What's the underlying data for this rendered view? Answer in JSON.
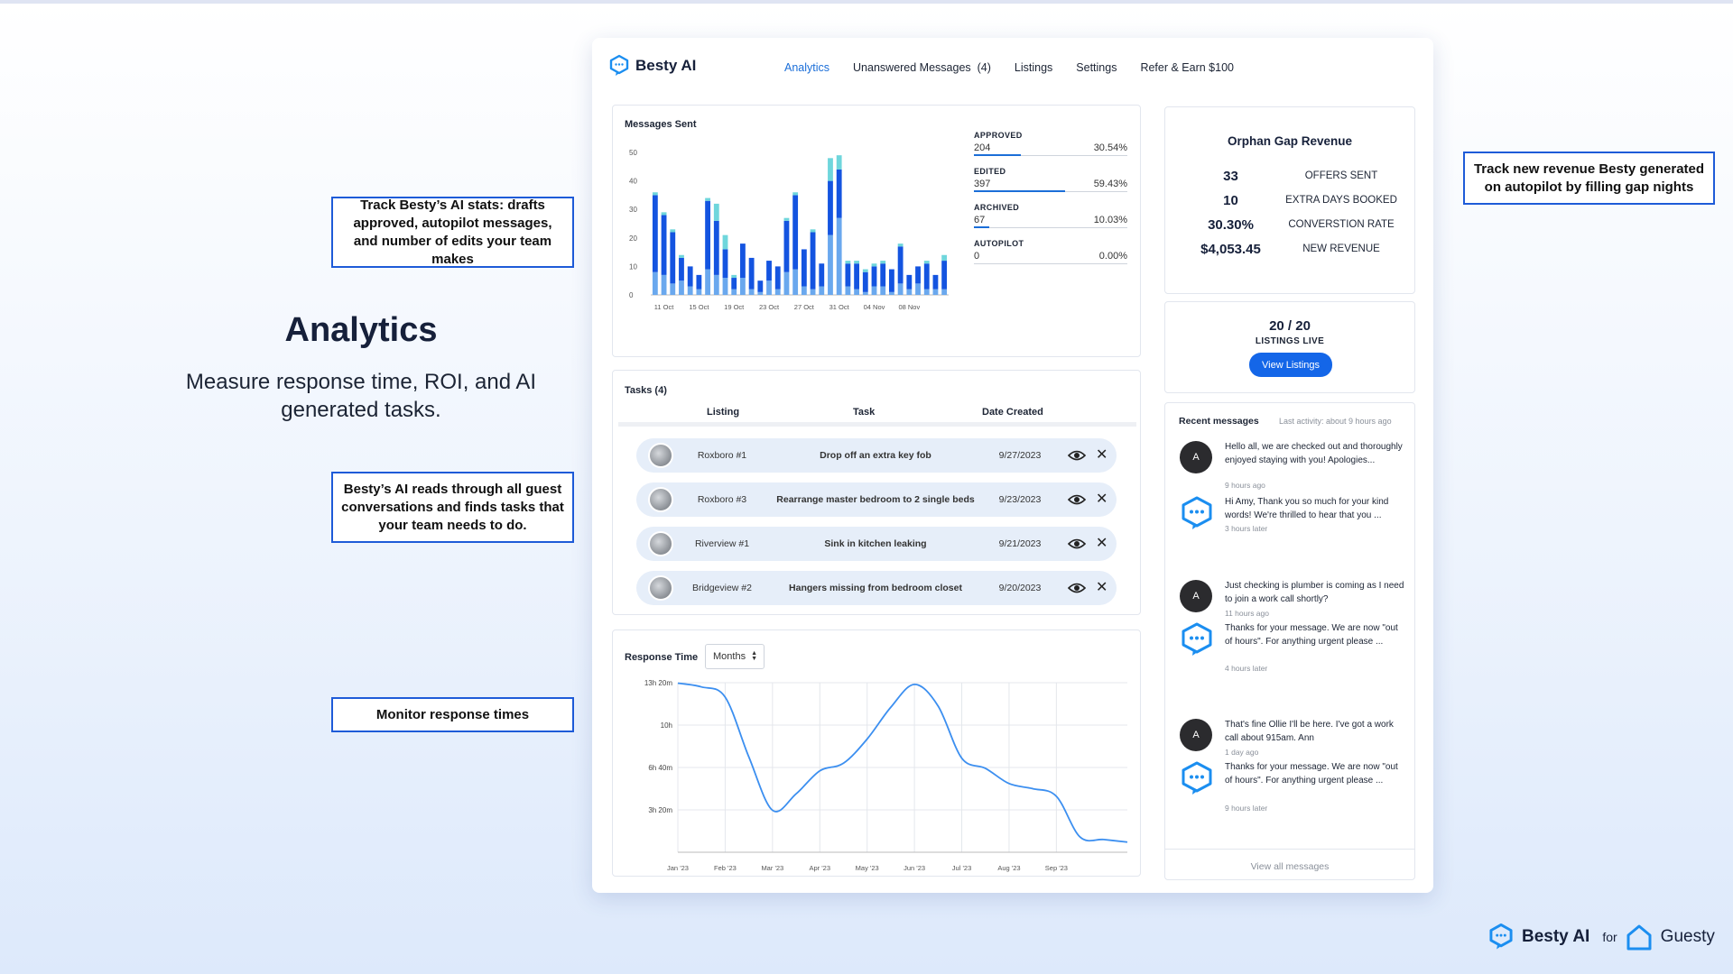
{
  "hero": {
    "title": "Analytics",
    "subtitle": "Measure response time, ROI, and AI generated tasks."
  },
  "callouts": {
    "ai_stats": "Track Besty’s AI stats: drafts approved, autopilot messages, and number of edits your team makes",
    "tasks": "Besty’s AI reads through all guest conversations and finds tasks that your team needs to do.",
    "response": "Monitor response times",
    "revenue": "Track new revenue Besty generated on autopilot by filling gap nights"
  },
  "app": {
    "brand": "Besty AI",
    "tabs": [
      {
        "label": "Analytics"
      },
      {
        "label": "Unanswered Messages  (4)"
      },
      {
        "label": "Listings"
      },
      {
        "label": "Settings"
      },
      {
        "label": "Refer & Earn $100"
      }
    ]
  },
  "messages_panel": {
    "title": "Messages Sent",
    "stats": [
      {
        "label": "APPROVED",
        "count": "204",
        "percent": "30.54%",
        "fraction": 0.3054
      },
      {
        "label": "EDITED",
        "count": "397",
        "percent": "59.43%",
        "fraction": 0.5943
      },
      {
        "label": "ARCHIVED",
        "count": "67",
        "percent": "10.03%",
        "fraction": 0.1003
      },
      {
        "label": "AUTOPILOT",
        "count": "0",
        "percent": "0.00%",
        "fraction": 0.0
      }
    ]
  },
  "tasks_panel": {
    "title": "Tasks (4)",
    "headers": {
      "listing": "Listing",
      "task": "Task",
      "date": "Date Created"
    },
    "rows": [
      {
        "listing": "Roxboro #1",
        "task": "Drop off an extra key fob",
        "date": "9/27/2023"
      },
      {
        "listing": "Roxboro #3",
        "task": "Rearrange master bedroom to 2 single beds",
        "date": "9/23/2023"
      },
      {
        "listing": "Riverview #1",
        "task": "Sink in kitchen leaking",
        "date": "9/21/2023"
      },
      {
        "listing": "Bridgeview #2",
        "task": "Hangers missing from bedroom closet",
        "date": "9/20/2023"
      }
    ]
  },
  "response_panel": {
    "title": "Response Time",
    "select_value": "Months"
  },
  "orphan": {
    "title": "Orphan Gap Revenue",
    "rows": [
      {
        "value": "33",
        "label": "OFFERS SENT"
      },
      {
        "value": "10",
        "label": "EXTRA DAYS BOOKED"
      },
      {
        "value": "30.30%",
        "label": "CONVERSTION RATE"
      },
      {
        "value": "$4,053.45",
        "label": "NEW REVENUE"
      }
    ]
  },
  "listings": {
    "count": "20 / 20",
    "label": "LISTINGS LIVE",
    "button": "View Listings"
  },
  "recent": {
    "title": "Recent messages",
    "activity": "Last activity: about 9 hours ago",
    "messages": [
      {
        "avatar": "A",
        "text": "Hello all, we are checked out and thoroughly enjoyed staying with you! Apologies...",
        "time": "9 hours ago"
      },
      {
        "avatar": "",
        "text": "Hi Amy, Thank you so much for your kind words! We're thrilled to hear that you ...",
        "time": "3 hours later"
      },
      {
        "avatar": "A",
        "text": "Just checking is plumber is coming as I need to join a work call shortly?",
        "time": "11 hours ago"
      },
      {
        "avatar": "",
        "text": "Thanks for your message. We are now \"out of hours\". For anything urgent please ...",
        "time": "4 hours later"
      },
      {
        "avatar": "A",
        "text": "That's fine Ollie I'll be here. I've got a work call about 915am. Ann",
        "time": "1 day ago"
      },
      {
        "avatar": "",
        "text": "Thanks for your message. We are now \"out of hours\". For anything urgent please ...",
        "time": "9 hours later"
      }
    ],
    "view_all": "View all messages"
  },
  "footer": {
    "brand": "Besty AI",
    "for": "for",
    "partner": "Guesty"
  },
  "colors": {
    "accent": "#1b6ed8",
    "bar_dark": "#1454e0",
    "bar_light": "#6aa8ee",
    "bar_cyan": "#6fd6dc"
  },
  "chart_data": [
    {
      "type": "bar",
      "title": "Messages Sent",
      "stacked": true,
      "ylim": [
        0,
        50
      ],
      "y_ticks": [
        0,
        10,
        20,
        30,
        40,
        50
      ],
      "x_tick_labels": [
        "11 Oct",
        "15 Oct",
        "19 Oct",
        "23 Oct",
        "27 Oct",
        "31 Oct",
        "04 Nov",
        "08 Nov"
      ],
      "x_tick_indices": [
        1,
        5,
        9,
        13,
        17,
        21,
        25,
        29
      ],
      "series": [
        {
          "name": "",
          "values": [
            8,
            7,
            4,
            5,
            3,
            2,
            9,
            7,
            6,
            2,
            6,
            2,
            1,
            5,
            2,
            8,
            9,
            3,
            2,
            3,
            21,
            27,
            3,
            2,
            1,
            3,
            3,
            1,
            4,
            2,
            4,
            2,
            2,
            2
          ]
        },
        {
          "name": "",
          "values": [
            27,
            21,
            18,
            8,
            7,
            5,
            24,
            19,
            10,
            4,
            12,
            11,
            4,
            7,
            8,
            18,
            26,
            13,
            20,
            8,
            19,
            17,
            8,
            9,
            7,
            7,
            8,
            8,
            13,
            5,
            6,
            9,
            5,
            10
          ]
        },
        {
          "name": "",
          "values": [
            1,
            1,
            1,
            1,
            0,
            0,
            1,
            6,
            5,
            1,
            0,
            0,
            0,
            0,
            0,
            1,
            1,
            0,
            1,
            0,
            8,
            5,
            1,
            1,
            1,
            1,
            1,
            0,
            1,
            0,
            0,
            1,
            0,
            2
          ]
        }
      ]
    },
    {
      "type": "line",
      "title": "Response Time",
      "y_tick_labels": [
        "3h 20m",
        "6h 40m",
        "10h",
        "13h 20m"
      ],
      "y_tick_values_hours": [
        3.333,
        6.667,
        10,
        13.333
      ],
      "ylim_hours": [
        0,
        13.333
      ],
      "x_tick_labels": [
        "Jan '23",
        "Feb '23",
        "Mar '23",
        "Apr '23",
        "May '23",
        "Jun '23",
        "Jul '23",
        "Aug '23",
        "Sep '23"
      ],
      "x": [
        0,
        0.5,
        1,
        1.5,
        2,
        2.5,
        3,
        3.5,
        4,
        4.5,
        5,
        5.5,
        6,
        6.5,
        7,
        7.5,
        8,
        8.5,
        9,
        9.5
      ],
      "y_hours": [
        13.3,
        13.0,
        12.2,
        7.5,
        3.3,
        4.6,
        6.4,
        7.0,
        8.9,
        11.4,
        13.2,
        11.5,
        7.4,
        6.6,
        5.4,
        5.0,
        4.4,
        1.2,
        1.0,
        0.8
      ]
    }
  ]
}
